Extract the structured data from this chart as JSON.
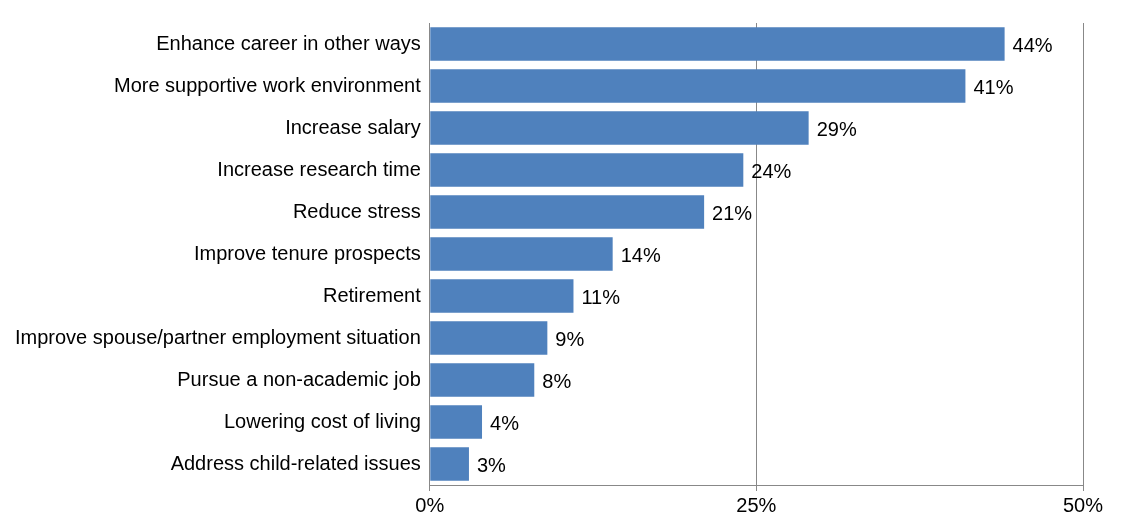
{
  "chart_data": {
    "type": "bar",
    "orientation": "horizontal",
    "categories": [
      "Enhance career in other ways",
      "More supportive work environment",
      "Increase salary",
      "Increase research time",
      "Reduce stress",
      "Improve tenure prospects",
      "Retirement",
      "Improve spouse/partner employment situation",
      "Pursue a non-academic job",
      "Lowering cost of living",
      "Address child-related issues"
    ],
    "values": [
      44,
      41,
      29,
      24,
      21,
      14,
      11,
      9,
      8,
      4,
      3
    ],
    "value_labels": [
      "44%",
      "41%",
      "29%",
      "24%",
      "21%",
      "14%",
      "11%",
      "9%",
      "8%",
      "4%",
      "3%"
    ],
    "color": "#4f81bd",
    "xlim": [
      0,
      50
    ],
    "xticks": [
      {
        "value": 0,
        "label": "0%"
      },
      {
        "value": 25,
        "label": "25%"
      },
      {
        "value": 50,
        "label": "50%"
      }
    ],
    "grid": "x",
    "legend": false
  }
}
